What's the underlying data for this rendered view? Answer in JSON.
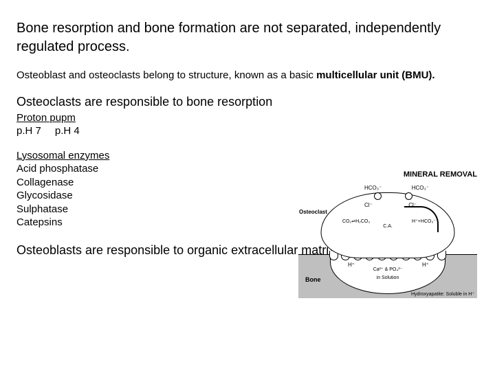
{
  "heading1": "Bone resorption and bone formation are not separated, independently regulated process.",
  "para2_pre": "Osteoblast and osteoclasts belong to structure, known as a basic ",
  "para2_bold": "multicellular unit (BMU).",
  "heading3": "Osteoclasts are responsible to bone resorption",
  "proton": {
    "title": "Proton pupm",
    "ph7": "p.H 7",
    "ph4": "p.H 4"
  },
  "enzymes": {
    "title": "Lysosomal enzymes",
    "items": [
      "Acid phosphatase",
      "Collagenase",
      "Glycosidase",
      "Sulphatase",
      "Catepsins"
    ]
  },
  "closing": "Osteoblasts are responsible to organic extracellular matrix formation.",
  "diagram": {
    "title": "MINERAL REMOVAL",
    "osteoclast": "Osteoclast",
    "bone": "Bone",
    "hco3": "HCO₃⁻",
    "cl": "Cl⁻",
    "co2_eq": "CO₂⇌H₂CO₃",
    "ca_label": "C.A.",
    "h_hco3": "H⁺+HCO₃⁻",
    "hplus": "H⁺",
    "capo4": "Ca²⁺ & PO₄³⁻",
    "insol": "in Solution",
    "hydroxy": "Hydroxyapatite: Soluble in H⁺"
  }
}
